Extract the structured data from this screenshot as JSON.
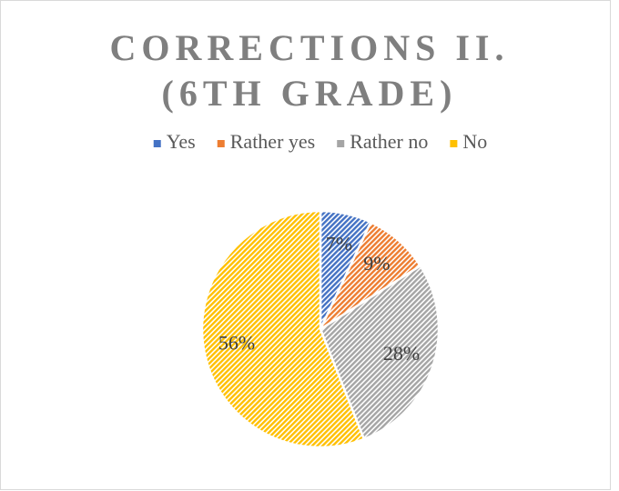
{
  "chart_data": {
    "type": "pie",
    "title": "CORRECTIONS II. (6TH GRADE)",
    "categories": [
      "Yes",
      "Rather yes",
      "Rather no",
      "No"
    ],
    "values": [
      7,
      9,
      28,
      56
    ],
    "value_labels": [
      "7%",
      "9%",
      "28%",
      "56%"
    ],
    "colors": [
      "#4472c4",
      "#ed7d31",
      "#a5a5a5",
      "#ffc000"
    ],
    "legend": "top"
  }
}
